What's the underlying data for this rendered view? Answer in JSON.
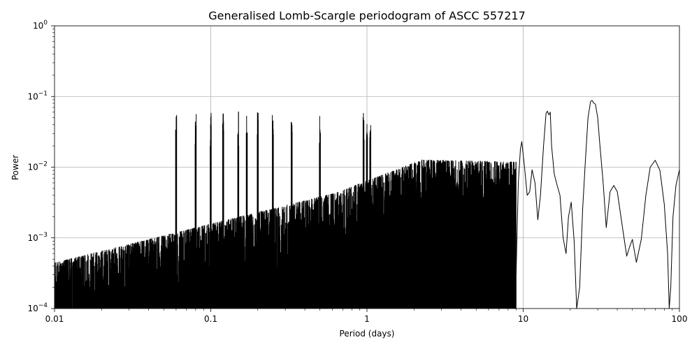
{
  "chart_data": {
    "type": "line",
    "title": "Generalised Lomb-Scargle periodogram of ASCC 557217",
    "xlabel": "Period (days)",
    "ylabel": "Power",
    "xscale": "log",
    "yscale": "log",
    "xlim": [
      0.01,
      100
    ],
    "ylim": [
      0.0001,
      1
    ],
    "grid": true,
    "x_ticks": [
      {
        "value": 0.01,
        "label": "0.01"
      },
      {
        "value": 0.1,
        "label": "0.1"
      },
      {
        "value": 1,
        "label": "1"
      },
      {
        "value": 10,
        "label": "10"
      },
      {
        "value": 100,
        "label": "100"
      }
    ],
    "y_ticks": [
      {
        "value": 0.0001,
        "base": "10",
        "exp": "−4"
      },
      {
        "value": 0.001,
        "base": "10",
        "exp": "−3"
      },
      {
        "value": 0.01,
        "base": "10",
        "exp": "−2"
      },
      {
        "value": 0.1,
        "base": "10",
        "exp": "−1"
      },
      {
        "value": 1,
        "base": "10",
        "exp": "0"
      }
    ],
    "series": [
      {
        "color": "#000000",
        "x": [
          9.0,
          9.3,
          9.6,
          9.8,
          10.2,
          10.6,
          11.0,
          11.4,
          11.9,
          12.4,
          12.9,
          13.5,
          14.0,
          14.3,
          14.6,
          14.9,
          15.2,
          15.8,
          16.5,
          17.2,
          18.0,
          18.8,
          19.5,
          20.3,
          21.2,
          22.0,
          23.0,
          24.0,
          25.0,
          26.0,
          27.0,
          27.6,
          28.2,
          29.0,
          30.0,
          31.0,
          32.5,
          34.0,
          36.0,
          38.0,
          40.0,
          43.0,
          46.0,
          48.0,
          50.0,
          53.0,
          57.0,
          61.0,
          65.0,
          70.0,
          75.0,
          80.0,
          84.0,
          86.0,
          88.0,
          91.0,
          95.0,
          100.0
        ],
        "y": [
          0.0003,
          0.006,
          0.018,
          0.023,
          0.01,
          0.004,
          0.0045,
          0.0092,
          0.006,
          0.0018,
          0.004,
          0.02,
          0.058,
          0.062,
          0.055,
          0.06,
          0.02,
          0.008,
          0.0055,
          0.004,
          0.001,
          0.0006,
          0.002,
          0.0032,
          0.0009,
          0.0001,
          0.0002,
          0.0025,
          0.012,
          0.05,
          0.085,
          0.088,
          0.081,
          0.078,
          0.05,
          0.02,
          0.006,
          0.0014,
          0.0045,
          0.0055,
          0.0045,
          0.0015,
          0.00055,
          0.00075,
          0.00095,
          0.00045,
          0.00095,
          0.004,
          0.01,
          0.0125,
          0.009,
          0.003,
          0.0006,
          0.0001,
          0.0002,
          0.002,
          0.0055,
          0.0092
        ]
      }
    ]
  }
}
